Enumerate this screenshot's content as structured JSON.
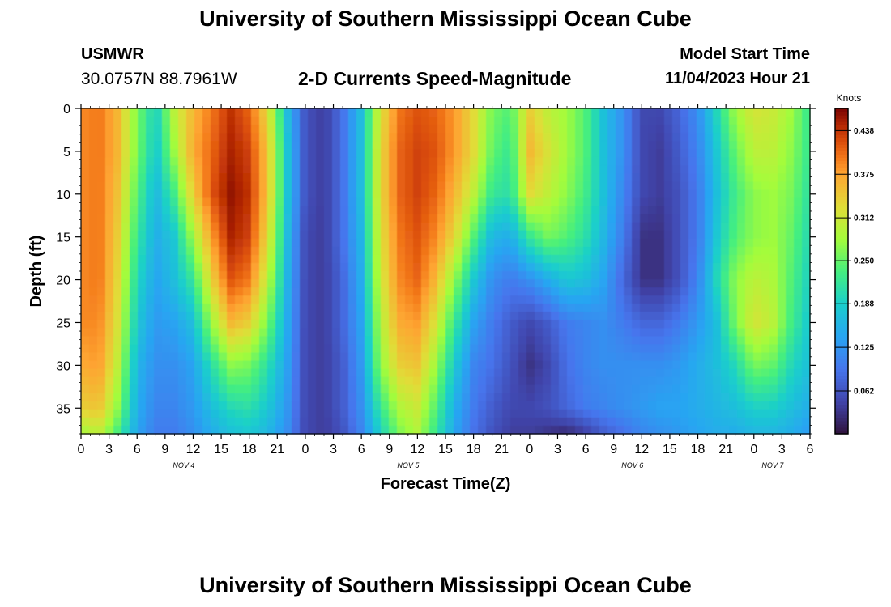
{
  "header": {
    "title": "University of Southern Mississippi Ocean Cube",
    "station_id": "USMWR",
    "station_coords": "30.0757N  88.7961W",
    "subtitle": "2-D Currents Speed-Magnitude",
    "run_label": "Model Start Time",
    "run_time": "11/04/2023 Hour 21"
  },
  "footer": {
    "title": "University of Southern Mississippi Ocean Cube"
  },
  "chart_data": {
    "type": "heatmap",
    "title": "2-D Currents Speed-Magnitude",
    "xlabel": "Forecast Time(Z)",
    "ylabel": "Depth (ft)",
    "colorbar_label": "Knots",
    "colormap": "turbo",
    "x_tick_labels": [
      "0",
      "3",
      "6",
      "9",
      "12",
      "15",
      "18",
      "21",
      "0",
      "3",
      "6",
      "9",
      "12",
      "15",
      "18",
      "21",
      "0",
      "3",
      "6",
      "9",
      "12",
      "15",
      "18",
      "21",
      "0",
      "3",
      "6"
    ],
    "x_tick_hours": [
      0,
      3,
      6,
      9,
      12,
      15,
      18,
      21,
      24,
      27,
      30,
      33,
      36,
      39,
      42,
      45,
      48,
      51,
      54,
      57,
      60,
      63,
      66,
      69,
      72,
      75,
      78
    ],
    "date_labels": [
      {
        "text": "NOV 4",
        "hour": 11
      },
      {
        "text": "NOV 5",
        "hour": 35
      },
      {
        "text": "NOV 6",
        "hour": 59
      },
      {
        "text": "NOV 7",
        "hour": 74
      }
    ],
    "xlim": [
      0,
      78
    ],
    "y_ticks": [
      0,
      5,
      10,
      15,
      20,
      25,
      30,
      35
    ],
    "ylim": [
      0,
      38
    ],
    "colorbar_ticks": [
      "0.062",
      "0.125",
      "0.188",
      "0.250",
      "0.312",
      "0.375",
      "0.438"
    ],
    "colorbar_tick_values": [
      0.062,
      0.125,
      0.188,
      0.25,
      0.312,
      0.375,
      0.438
    ],
    "value_range": [
      0,
      0.47
    ],
    "grid": false,
    "legend": "colorbar-right",
    "hours": [
      0,
      2,
      4,
      6,
      8,
      10,
      12,
      14,
      16,
      18,
      20,
      22,
      24,
      26,
      28,
      30,
      32,
      34,
      36,
      38,
      40,
      42,
      44,
      46,
      48,
      50,
      52,
      54,
      56,
      58,
      60,
      62,
      64,
      66,
      68,
      70,
      72,
      74,
      76,
      78
    ],
    "depths": [
      0,
      5,
      10,
      15,
      20,
      25,
      30,
      35,
      38
    ],
    "values": [
      [
        0.39,
        0.4,
        0.36,
        0.26,
        0.19,
        0.3,
        0.36,
        0.4,
        0.44,
        0.41,
        0.33,
        0.17,
        0.06,
        0.04,
        0.09,
        0.17,
        0.32,
        0.4,
        0.42,
        0.41,
        0.38,
        0.33,
        0.26,
        0.24,
        0.34,
        0.3,
        0.28,
        0.24,
        0.17,
        0.12,
        0.05,
        0.05,
        0.08,
        0.12,
        0.2,
        0.28,
        0.32,
        0.31,
        0.28,
        0.22
      ],
      [
        0.39,
        0.4,
        0.36,
        0.26,
        0.18,
        0.28,
        0.37,
        0.41,
        0.45,
        0.43,
        0.35,
        0.18,
        0.06,
        0.04,
        0.09,
        0.17,
        0.33,
        0.41,
        0.43,
        0.42,
        0.38,
        0.33,
        0.25,
        0.22,
        0.36,
        0.32,
        0.28,
        0.24,
        0.17,
        0.12,
        0.05,
        0.04,
        0.07,
        0.11,
        0.18,
        0.25,
        0.3,
        0.3,
        0.27,
        0.22
      ],
      [
        0.39,
        0.4,
        0.35,
        0.24,
        0.16,
        0.23,
        0.34,
        0.42,
        0.46,
        0.44,
        0.35,
        0.18,
        0.06,
        0.04,
        0.09,
        0.17,
        0.33,
        0.41,
        0.43,
        0.41,
        0.36,
        0.3,
        0.22,
        0.21,
        0.33,
        0.3,
        0.27,
        0.23,
        0.17,
        0.11,
        0.05,
        0.04,
        0.06,
        0.1,
        0.17,
        0.23,
        0.27,
        0.28,
        0.26,
        0.21
      ],
      [
        0.39,
        0.4,
        0.34,
        0.22,
        0.15,
        0.18,
        0.28,
        0.38,
        0.45,
        0.43,
        0.33,
        0.17,
        0.05,
        0.04,
        0.09,
        0.16,
        0.32,
        0.4,
        0.42,
        0.39,
        0.33,
        0.24,
        0.16,
        0.15,
        0.22,
        0.26,
        0.24,
        0.21,
        0.16,
        0.1,
        0.03,
        0.03,
        0.06,
        0.1,
        0.18,
        0.24,
        0.27,
        0.28,
        0.25,
        0.2
      ],
      [
        0.39,
        0.4,
        0.33,
        0.2,
        0.14,
        0.17,
        0.22,
        0.34,
        0.42,
        0.4,
        0.3,
        0.16,
        0.05,
        0.04,
        0.08,
        0.15,
        0.31,
        0.39,
        0.41,
        0.36,
        0.27,
        0.18,
        0.12,
        0.1,
        0.12,
        0.15,
        0.18,
        0.17,
        0.14,
        0.08,
        0.03,
        0.03,
        0.06,
        0.11,
        0.2,
        0.27,
        0.3,
        0.29,
        0.24,
        0.19
      ],
      [
        0.39,
        0.39,
        0.32,
        0.18,
        0.13,
        0.14,
        0.17,
        0.28,
        0.36,
        0.34,
        0.26,
        0.15,
        0.05,
        0.04,
        0.08,
        0.14,
        0.29,
        0.37,
        0.38,
        0.32,
        0.22,
        0.14,
        0.1,
        0.07,
        0.05,
        0.07,
        0.1,
        0.11,
        0.12,
        0.1,
        0.08,
        0.08,
        0.1,
        0.13,
        0.17,
        0.26,
        0.32,
        0.3,
        0.23,
        0.18
      ],
      [
        0.37,
        0.38,
        0.3,
        0.16,
        0.12,
        0.12,
        0.14,
        0.21,
        0.27,
        0.26,
        0.21,
        0.14,
        0.05,
        0.04,
        0.07,
        0.13,
        0.27,
        0.34,
        0.35,
        0.28,
        0.18,
        0.11,
        0.09,
        0.06,
        0.03,
        0.05,
        0.09,
        0.11,
        0.12,
        0.12,
        0.12,
        0.12,
        0.13,
        0.15,
        0.17,
        0.2,
        0.26,
        0.25,
        0.2,
        0.17
      ],
      [
        0.34,
        0.35,
        0.27,
        0.15,
        0.11,
        0.11,
        0.13,
        0.17,
        0.2,
        0.21,
        0.18,
        0.13,
        0.05,
        0.04,
        0.07,
        0.12,
        0.22,
        0.29,
        0.31,
        0.24,
        0.15,
        0.1,
        0.07,
        0.05,
        0.05,
        0.06,
        0.08,
        0.1,
        0.11,
        0.12,
        0.13,
        0.14,
        0.14,
        0.15,
        0.16,
        0.17,
        0.19,
        0.19,
        0.17,
        0.15
      ],
      [
        0.28,
        0.3,
        0.23,
        0.14,
        0.1,
        0.1,
        0.12,
        0.15,
        0.17,
        0.18,
        0.16,
        0.12,
        0.05,
        0.04,
        0.06,
        0.11,
        0.19,
        0.26,
        0.29,
        0.22,
        0.14,
        0.09,
        0.06,
        0.04,
        0.04,
        0.03,
        0.02,
        0.04,
        0.07,
        0.09,
        0.11,
        0.12,
        0.13,
        0.14,
        0.15,
        0.15,
        0.16,
        0.16,
        0.15,
        0.13
      ]
    ]
  }
}
